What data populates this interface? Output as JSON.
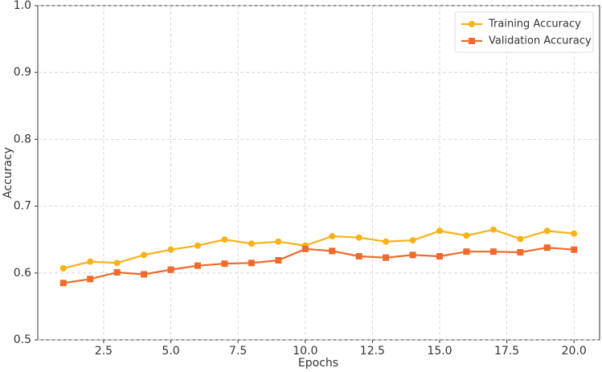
{
  "chart_data": {
    "type": "line",
    "x": [
      1,
      2,
      3,
      4,
      5,
      6,
      7,
      8,
      9,
      10,
      11,
      12,
      13,
      14,
      15,
      16,
      17,
      18,
      19,
      20
    ],
    "series": [
      {
        "name": "Training Accuracy",
        "color": "#f7b217",
        "marker": "circle",
        "values": [
          0.607,
          0.617,
          0.615,
          0.627,
          0.635,
          0.641,
          0.65,
          0.644,
          0.647,
          0.641,
          0.655,
          0.653,
          0.647,
          0.649,
          0.663,
          0.656,
          0.665,
          0.651,
          0.663,
          0.659
        ]
      },
      {
        "name": "Validation Accuracy",
        "color": "#ef6a2b",
        "marker": "square",
        "values": [
          0.585,
          0.591,
          0.601,
          0.598,
          0.605,
          0.611,
          0.614,
          0.615,
          0.619,
          0.636,
          0.633,
          0.625,
          0.623,
          0.627,
          0.625,
          0.632,
          0.632,
          0.631,
          0.638,
          0.635
        ]
      }
    ],
    "xlabel": "Epochs",
    "ylabel": "Accuracy",
    "xlim": [
      0.05,
      20.95
    ],
    "ylim": [
      0.5,
      1.0
    ],
    "xticks": [
      2.5,
      {
        "value": 5,
        "label": "5.0"
      },
      7.5,
      {
        "value": 10,
        "label": "10.0"
      },
      12.5,
      {
        "value": 15,
        "label": "15.0"
      },
      17.5,
      {
        "value": 20,
        "label": "20.0"
      }
    ],
    "yticks": [
      0.5,
      0.6,
      0.7,
      0.8,
      0.9,
      {
        "value": 1,
        "label": "1.0"
      }
    ],
    "grid": true,
    "legend": "upper right"
  }
}
